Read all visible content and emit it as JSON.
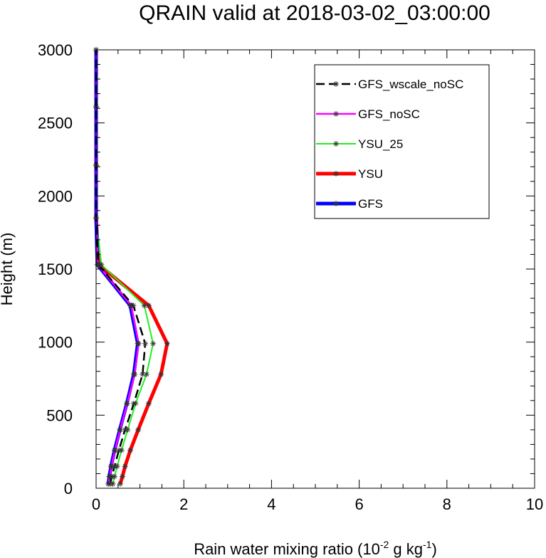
{
  "chart_data": {
    "type": "line",
    "title": "QRAIN valid at 2018-03-02_03:00:00",
    "xlabel": "Rain water mixing ratio (10",
    "xlabel_exp1": "-2",
    "xlabel_mid": " g kg",
    "xlabel_exp2": "-1",
    "xlabel_end": ")",
    "ylabel": "Height (m)",
    "xlim": [
      0,
      10
    ],
    "ylim": [
      0,
      3000
    ],
    "xticks": [
      "0",
      "2",
      "4",
      "6",
      "8",
      "10"
    ],
    "yticks": [
      "0",
      "500",
      "1000",
      "1500",
      "2000",
      "2500",
      "3000"
    ],
    "grid": false,
    "legend_position": "top-right",
    "heights": [
      30,
      80,
      150,
      260,
      400,
      580,
      780,
      990,
      1250,
      1530,
      1850,
      2210,
      2610,
      3000
    ],
    "series": [
      {
        "name": "GFS_wscale_noSC",
        "color": "#000000",
        "dashed": true,
        "width": 2.5,
        "values": [
          0.32,
          0.36,
          0.42,
          0.52,
          0.66,
          0.86,
          1.06,
          1.12,
          0.85,
          0.05,
          0.0,
          0.0,
          0.0,
          0.0
        ]
      },
      {
        "name": "GFS_noSC",
        "color": "#ff00ff",
        "dashed": false,
        "width": 2.5,
        "values": [
          0.28,
          0.31,
          0.35,
          0.43,
          0.55,
          0.71,
          0.88,
          0.97,
          0.8,
          0.04,
          0.0,
          0.0,
          0.0,
          0.0
        ]
      },
      {
        "name": "YSU_25",
        "color": "#22ee22",
        "dashed": false,
        "width": 2,
        "values": [
          0.38,
          0.42,
          0.48,
          0.58,
          0.72,
          0.9,
          1.15,
          1.3,
          1.1,
          0.12,
          0.0,
          0.0,
          0.0,
          0.0
        ]
      },
      {
        "name": "YSU",
        "color": "#ff0000",
        "dashed": false,
        "width": 5,
        "values": [
          0.55,
          0.6,
          0.66,
          0.78,
          0.96,
          1.2,
          1.48,
          1.62,
          1.2,
          0.06,
          0.0,
          0.0,
          0.0,
          0.0
        ]
      },
      {
        "name": "GFS",
        "color": "#0000ff",
        "dashed": false,
        "width": 5,
        "values": [
          0.28,
          0.3,
          0.34,
          0.42,
          0.54,
          0.7,
          0.86,
          0.95,
          0.78,
          0.03,
          0.0,
          0.0,
          0.0,
          0.0
        ]
      }
    ]
  }
}
